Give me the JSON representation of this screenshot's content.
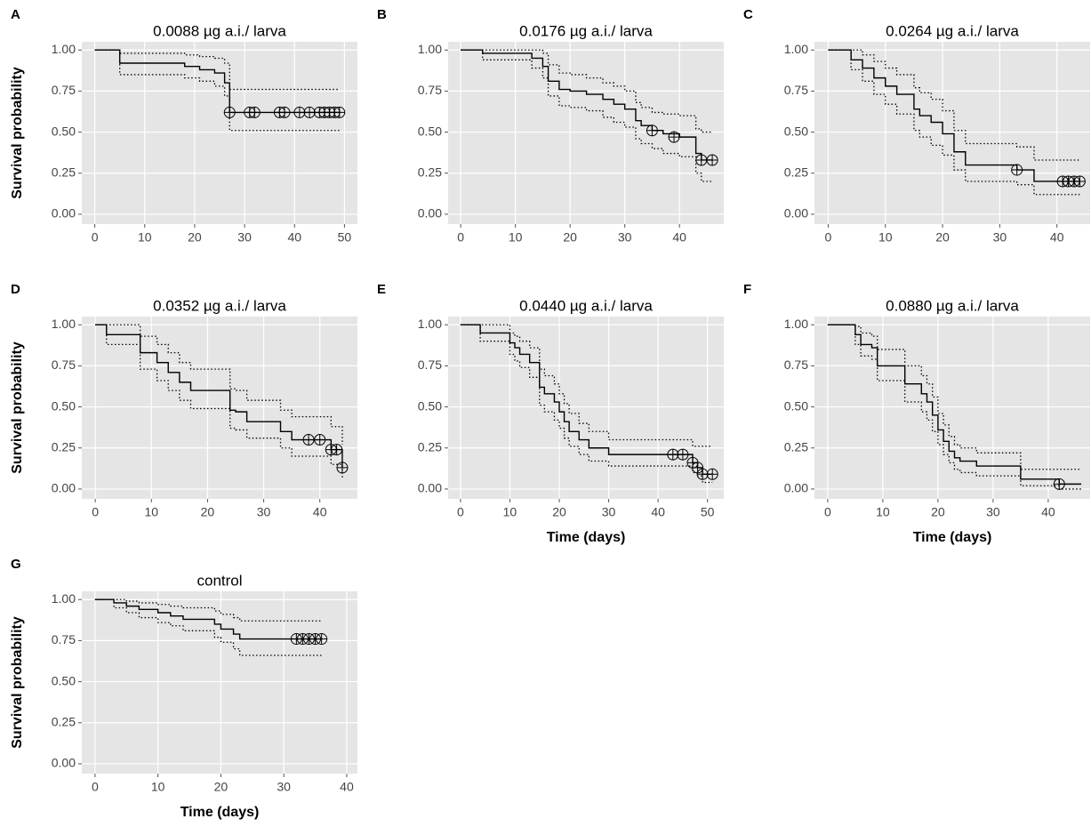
{
  "chart_data": [
    {
      "type": "step",
      "panel": "A",
      "title": "0.0088 µg a.i./ larva",
      "ylabel": "Survival probability",
      "xlim": [
        -2.6,
        52.6
      ],
      "xticks": [
        0,
        10,
        20,
        30,
        40,
        50
      ],
      "ylim": [
        -0.06,
        1.05
      ],
      "yticks": [
        {
          "value": 0,
          "label": "0.00"
        },
        0.25,
        {
          "value": 0.5,
          "label": "0.50"
        },
        0.75,
        {
          "value": 1,
          "label": "1.00"
        }
      ],
      "x": [
        0,
        5,
        18,
        21,
        24,
        26,
        27,
        49
      ],
      "series": [
        {
          "style": "solid",
          "values": [
            1,
            0.92,
            0.9,
            0.88,
            0.86,
            0.8,
            0.62,
            0.62
          ]
        },
        {
          "style": "dotted",
          "values": [
            1,
            0.98,
            0.97,
            0.96,
            0.95,
            0.92,
            0.76,
            0.76
          ]
        },
        {
          "style": "dotted",
          "values": [
            1,
            0.85,
            0.83,
            0.81,
            0.78,
            0.72,
            0.51,
            0.51
          ]
        }
      ],
      "censored": {
        "x": [
          27,
          31,
          32,
          37,
          38,
          41,
          43,
          45,
          46,
          47,
          48,
          49
        ],
        "values": [
          0.62,
          0.62,
          0.62,
          0.62,
          0.62,
          0.62,
          0.62,
          0.62,
          0.62,
          0.62,
          0.62,
          0.62
        ]
      },
      "grid": true,
      "color": "#000000"
    },
    {
      "type": "step",
      "panel": "B",
      "title": "0.0176 µg a.i./ larva",
      "xlim": [
        -2.3,
        48.1
      ],
      "xticks": [
        0,
        10,
        20,
        30,
        40
      ],
      "ylim": [
        -0.06,
        1.05
      ],
      "yticks": [
        {
          "value": 0,
          "label": "0.00"
        },
        0.25,
        {
          "value": 0.5,
          "label": "0.50"
        },
        0.75,
        {
          "value": 1,
          "label": "1.00"
        }
      ],
      "x": [
        0,
        4,
        13,
        15,
        16,
        18,
        20,
        23,
        26,
        28,
        30,
        32,
        33,
        35,
        37,
        40,
        43,
        44,
        46
      ],
      "series": [
        {
          "style": "solid",
          "values": [
            1,
            0.98,
            0.95,
            0.9,
            0.81,
            0.76,
            0.75,
            0.73,
            0.7,
            0.67,
            0.64,
            0.57,
            0.54,
            0.51,
            0.49,
            0.47,
            0.37,
            0.33,
            0.33
          ]
        },
        {
          "style": "dotted",
          "values": [
            1,
            1,
            1,
            0.98,
            0.91,
            0.86,
            0.85,
            0.83,
            0.8,
            0.78,
            0.75,
            0.68,
            0.65,
            0.62,
            0.61,
            0.6,
            0.52,
            0.5,
            0.5
          ]
        },
        {
          "style": "dotted",
          "values": [
            1,
            0.94,
            0.89,
            0.83,
            0.72,
            0.66,
            0.65,
            0.63,
            0.59,
            0.56,
            0.53,
            0.46,
            0.43,
            0.4,
            0.37,
            0.35,
            0.25,
            0.2,
            0.2
          ]
        }
      ],
      "censored": {
        "x": [
          35,
          39,
          44,
          46
        ],
        "values": [
          0.51,
          0.47,
          0.33,
          0.33
        ]
      },
      "grid": true,
      "color": "#000000"
    },
    {
      "type": "step",
      "panel": "C",
      "title": "0.0264 µg a.i./ larva",
      "xlim": [
        -2.4,
        45.8
      ],
      "xticks": [
        0,
        10,
        20,
        30,
        40
      ],
      "ylim": [
        -0.06,
        1.05
      ],
      "yticks": [
        {
          "value": 0,
          "label": "0.00"
        },
        0.25,
        {
          "value": 0.5,
          "label": "0.50"
        },
        0.75,
        {
          "value": 1,
          "label": "1.00"
        }
      ],
      "x": [
        0,
        4,
        6,
        8,
        10,
        12,
        15,
        16,
        18,
        20,
        22,
        24,
        30,
        33,
        36,
        44
      ],
      "series": [
        {
          "style": "solid",
          "values": [
            1,
            0.94,
            0.89,
            0.83,
            0.78,
            0.73,
            0.64,
            0.6,
            0.56,
            0.49,
            0.38,
            0.3,
            0.3,
            0.27,
            0.2,
            0.2
          ]
        },
        {
          "style": "dotted",
          "values": [
            1,
            1,
            0.97,
            0.93,
            0.89,
            0.85,
            0.77,
            0.74,
            0.7,
            0.63,
            0.51,
            0.43,
            0.43,
            0.41,
            0.33,
            0.33
          ]
        },
        {
          "style": "dotted",
          "values": [
            1,
            0.88,
            0.81,
            0.73,
            0.67,
            0.61,
            0.51,
            0.47,
            0.42,
            0.36,
            0.27,
            0.2,
            0.2,
            0.18,
            0.12,
            0.12
          ]
        }
      ],
      "censored": {
        "x": [
          33,
          41,
          42,
          43,
          44
        ],
        "values": [
          0.27,
          0.2,
          0.2,
          0.2,
          0.2
        ]
      },
      "grid": true,
      "color": "#000000"
    },
    {
      "type": "step",
      "panel": "D",
      "title": "0.0352 µg a.i./ larva",
      "ylabel": "Survival probability",
      "xlim": [
        -2.4,
        46.7
      ],
      "xticks": [
        0,
        10,
        20,
        30,
        40
      ],
      "ylim": [
        -0.06,
        1.05
      ],
      "yticks": [
        {
          "value": 0,
          "label": "0.00"
        },
        0.25,
        {
          "value": 0.5,
          "label": "0.50"
        },
        0.75,
        {
          "value": 1,
          "label": "1.00"
        }
      ],
      "x": [
        0,
        2,
        8,
        11,
        13,
        15,
        17,
        24,
        25,
        27,
        33,
        35,
        38,
        42,
        44
      ],
      "series": [
        {
          "style": "solid",
          "values": [
            1,
            0.94,
            0.83,
            0.77,
            0.71,
            0.65,
            0.6,
            0.48,
            0.47,
            0.41,
            0.35,
            0.3,
            0.3,
            0.24,
            0.13
          ]
        },
        {
          "style": "dotted",
          "values": [
            1,
            1,
            0.93,
            0.88,
            0.83,
            0.77,
            0.73,
            0.61,
            0.6,
            0.54,
            0.48,
            0.44,
            0.44,
            0.38,
            0.27
          ]
        },
        {
          "style": "dotted",
          "values": [
            1,
            0.88,
            0.73,
            0.66,
            0.6,
            0.54,
            0.49,
            0.37,
            0.36,
            0.31,
            0.25,
            0.2,
            0.2,
            0.15,
            0.06
          ]
        }
      ],
      "censored": {
        "x": [
          38,
          40,
          42,
          43,
          44
        ],
        "values": [
          0.3,
          0.3,
          0.24,
          0.24,
          0.13
        ]
      },
      "grid": true,
      "color": "#000000"
    },
    {
      "type": "step",
      "panel": "E",
      "title": "0.0440 µg a.i./ larva",
      "xlabel": "Time (days)",
      "xlim": [
        -2.5,
        53.3
      ],
      "xticks": [
        0,
        10,
        20,
        30,
        40,
        50
      ],
      "ylim": [
        -0.06,
        1.05
      ],
      "yticks": [
        {
          "value": 0,
          "label": "0.00"
        },
        0.25,
        {
          "value": 0.5,
          "label": "0.50"
        },
        0.75,
        {
          "value": 1,
          "label": "1.00"
        }
      ],
      "x": [
        0,
        4,
        10,
        11,
        12,
        14,
        16,
        17,
        19,
        20,
        21,
        22,
        24,
        26,
        30,
        43,
        47,
        48,
        49,
        51
      ],
      "series": [
        {
          "style": "solid",
          "values": [
            1,
            0.95,
            0.89,
            0.86,
            0.82,
            0.77,
            0.62,
            0.58,
            0.53,
            0.47,
            0.41,
            0.35,
            0.3,
            0.25,
            0.21,
            0.21,
            0.16,
            0.13,
            0.09,
            0.09
          ]
        },
        {
          "style": "dotted",
          "values": [
            1,
            1,
            0.95,
            0.93,
            0.9,
            0.86,
            0.73,
            0.69,
            0.64,
            0.58,
            0.52,
            0.46,
            0.4,
            0.35,
            0.3,
            0.3,
            0.26,
            0.26,
            0.26,
            0.26
          ]
        },
        {
          "style": "dotted",
          "values": [
            1,
            0.9,
            0.82,
            0.78,
            0.74,
            0.68,
            0.51,
            0.47,
            0.42,
            0.37,
            0.31,
            0.26,
            0.21,
            0.17,
            0.14,
            0.14,
            0.1,
            0.08,
            0.04,
            0.04
          ]
        }
      ],
      "censored": {
        "x": [
          43,
          45,
          47,
          48,
          49,
          51
        ],
        "values": [
          0.21,
          0.21,
          0.16,
          0.13,
          0.09,
          0.09
        ]
      },
      "grid": true,
      "color": "#000000"
    },
    {
      "type": "step",
      "panel": "F",
      "title": "0.0880 µg a.i./ larva",
      "xlabel": "Time (days)",
      "xlim": [
        -2.4,
        47.6
      ],
      "xticks": [
        0,
        10,
        20,
        30,
        40
      ],
      "ylim": [
        -0.06,
        1.05
      ],
      "yticks": [
        {
          "value": 0,
          "label": "0.00"
        },
        0.25,
        {
          "value": 0.5,
          "label": "0.50"
        },
        0.75,
        {
          "value": 1,
          "label": "1.00"
        }
      ],
      "x": [
        0,
        5,
        6,
        8,
        9,
        14,
        17,
        18,
        19,
        20,
        21,
        22,
        23,
        24,
        27,
        35,
        42,
        46
      ],
      "series": [
        {
          "style": "solid",
          "values": [
            1,
            0.94,
            0.88,
            0.86,
            0.75,
            0.64,
            0.58,
            0.53,
            0.45,
            0.36,
            0.29,
            0.23,
            0.19,
            0.17,
            0.14,
            0.06,
            0.03,
            0.03
          ]
        },
        {
          "style": "dotted",
          "values": [
            1,
            0.99,
            0.95,
            0.93,
            0.85,
            0.75,
            0.69,
            0.64,
            0.56,
            0.46,
            0.39,
            0.32,
            0.27,
            0.25,
            0.22,
            0.12,
            0.12,
            0.12
          ]
        },
        {
          "style": "dotted",
          "values": [
            1,
            0.88,
            0.81,
            0.79,
            0.66,
            0.53,
            0.47,
            0.42,
            0.35,
            0.27,
            0.21,
            0.16,
            0.12,
            0.1,
            0.08,
            0.02,
            0,
            0
          ]
        }
      ],
      "censored": {
        "x": [
          42
        ],
        "values": [
          0.03
        ]
      },
      "grid": true,
      "color": "#000000"
    },
    {
      "type": "step",
      "panel": "G",
      "title": "control",
      "ylabel": "Survival probability",
      "xlabel": "Time (days)",
      "xlim": [
        -2.1,
        41.7
      ],
      "xticks": [
        0,
        10,
        20,
        30,
        40
      ],
      "ylim": [
        -0.06,
        1.05
      ],
      "yticks": [
        {
          "value": 0,
          "label": "0.00"
        },
        0.25,
        {
          "value": 0.5,
          "label": "0.50"
        },
        0.75,
        {
          "value": 1,
          "label": "1.00"
        }
      ],
      "x": [
        0,
        3,
        5,
        7,
        10,
        12,
        14,
        19,
        20,
        22,
        23,
        36
      ],
      "series": [
        {
          "style": "solid",
          "values": [
            1,
            0.98,
            0.96,
            0.94,
            0.92,
            0.9,
            0.88,
            0.85,
            0.82,
            0.79,
            0.76,
            0.76
          ]
        },
        {
          "style": "dotted",
          "values": [
            1,
            1,
            0.99,
            0.98,
            0.97,
            0.96,
            0.95,
            0.93,
            0.91,
            0.89,
            0.87,
            0.87
          ]
        },
        {
          "style": "dotted",
          "values": [
            1,
            0.95,
            0.92,
            0.89,
            0.86,
            0.84,
            0.81,
            0.77,
            0.74,
            0.7,
            0.66,
            0.66
          ]
        }
      ],
      "censored": {
        "x": [
          32,
          33,
          34,
          35,
          36
        ],
        "values": [
          0.76,
          0.76,
          0.76,
          0.76,
          0.76
        ]
      },
      "grid": true,
      "color": "#000000"
    }
  ]
}
